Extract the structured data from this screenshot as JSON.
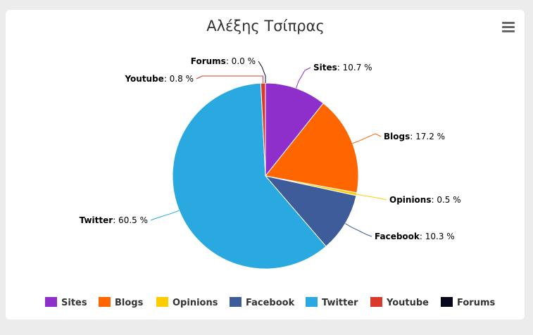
{
  "chart_data": {
    "type": "pie",
    "title": "Αλέξης Τσίπρας",
    "start_label": "",
    "slices": [
      {
        "name": "Sites",
        "value": 10.7,
        "color": "#8e2ecb"
      },
      {
        "name": "Blogs",
        "value": 17.2,
        "color": "#ff6600"
      },
      {
        "name": "Opinions",
        "value": 0.5,
        "color": "#ffcc00"
      },
      {
        "name": "Facebook",
        "value": 10.3,
        "color": "#3d5c99"
      },
      {
        "name": "Twitter",
        "value": 60.5,
        "color": "#29a9e0"
      },
      {
        "name": "Youtube",
        "value": 0.8,
        "color": "#d9392b"
      },
      {
        "name": "Forums",
        "value": 0.0,
        "color": "#07071e"
      }
    ],
    "label_suffix": ": ",
    "value_suffix": " %",
    "legend_position": "bottom"
  },
  "menu_icon": "hamburger-menu-icon"
}
